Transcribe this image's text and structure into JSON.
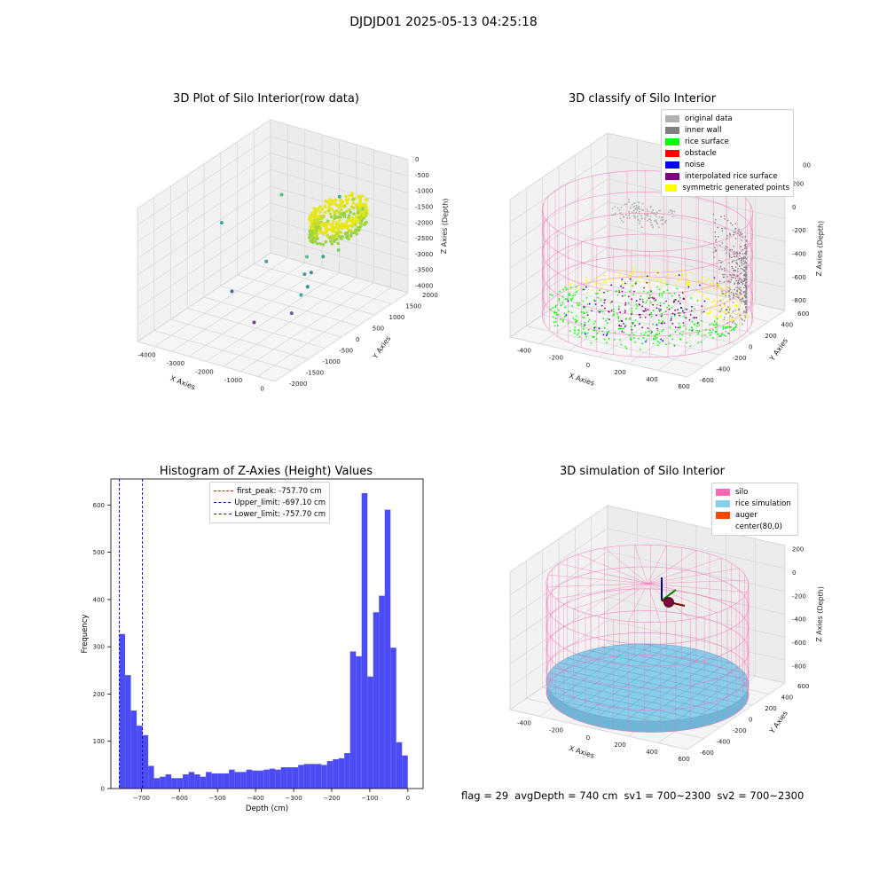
{
  "suptitle": "DJDJD01 2025-05-13 04:25:18",
  "footer": {
    "flag": "flag = 29",
    "avg_depth": "avgDepth = 740 cm",
    "sv1": "sv1 = 700~2300",
    "sv2": "sv2 = 700~2300"
  },
  "colors": {
    "pane": "#f2f2f2",
    "grid": "#d6d6d6",
    "hist": "#4c4cf5",
    "original": "#b0b0b0",
    "wall": "#808080",
    "rice": "#00ff00",
    "obstacle": "#ff0000",
    "noise": "#0000ff",
    "interp": "#800080",
    "sym": "#ffff00",
    "silo": "#ff69b4",
    "rice_sim": "#87ceeb",
    "auger": "#ff4500"
  },
  "chart_data": [
    {
      "type": "scatter",
      "title": "3D Plot of Silo Interior(row data)",
      "xlabel": "X Axies",
      "ylabel": "Y Axies",
      "zlabel": "Z Axies (Depth)",
      "x_ticks": [
        "-4000",
        "-3000",
        "-2000",
        "-1000",
        "0"
      ],
      "y_ticks": [
        "-2000",
        "-1500",
        "-1000",
        "-500",
        "0",
        "500",
        "1000",
        "1500",
        "2000"
      ],
      "z_ticks": [
        "0",
        "-500",
        "-1000",
        "-1500",
        "-2000",
        "-2500",
        "-3000",
        "-3500",
        "-4000"
      ]
    },
    {
      "type": "scatter",
      "title": "3D classify of Silo Interior",
      "xlabel": "X Axies",
      "ylabel": "Y Axies",
      "zlabel": "Z Axies (Depth)",
      "x_ticks": [
        "-400",
        "-200",
        "0",
        "200",
        "400",
        "600"
      ],
      "y_ticks": [
        "-600",
        "-400",
        "-200",
        "0",
        "200",
        "400",
        "600"
      ],
      "z_ticks": [
        "200",
        "0",
        "-200",
        "-400",
        "-600",
        "-800"
      ],
      "z_tick_clipped": "00",
      "legend": [
        {
          "label": "original data",
          "color": "#b0b0b0"
        },
        {
          "label": "inner wall",
          "color": "#808080"
        },
        {
          "label": "rice surface",
          "color": "#00ff00"
        },
        {
          "label": "obstacle",
          "color": "#ff0000"
        },
        {
          "label": "noise",
          "color": "#0000ff"
        },
        {
          "label": "interpolated rice surface",
          "color": "#800080"
        },
        {
          "label": "symmetric generated points",
          "color": "#ffff00"
        }
      ]
    },
    {
      "type": "bar",
      "title": "Histogram of Z-Axies (Height) Values",
      "xlabel": "Depth (cm)",
      "ylabel": "Frequency",
      "xlim": [
        -780,
        40
      ],
      "ylim": [
        0,
        655
      ],
      "x_ticks": [
        -700,
        -600,
        -500,
        -400,
        -300,
        -200,
        -100,
        0
      ],
      "y_ticks": [
        0,
        100,
        200,
        300,
        400,
        500,
        600
      ],
      "bin_start": -757.7,
      "bin_width": 15.15,
      "values": [
        327,
        240,
        165,
        133,
        113,
        48,
        22,
        25,
        30,
        22,
        22,
        30,
        35,
        30,
        25,
        35,
        32,
        32,
        32,
        40,
        35,
        35,
        40,
        38,
        38,
        40,
        42,
        40,
        45,
        45,
        45,
        50,
        52,
        52,
        52,
        50,
        58,
        62,
        64,
        75,
        290,
        280,
        625,
        237,
        373,
        408,
        590,
        298,
        98,
        70
      ],
      "vlines": [
        {
          "label": "first_peak: -757.70 cm",
          "x": -757.7,
          "color": "#ff0000"
        },
        {
          "label": "Upper_limit: -697.10 cm",
          "x": -697.1,
          "color": "#0000aa"
        },
        {
          "label": "Lower_limit: -757.70 cm",
          "x": -757.7,
          "color": "#0000ff"
        }
      ]
    },
    {
      "type": "scatter",
      "title": "3D simulation of Silo Interior",
      "xlabel": "X Axies",
      "ylabel": "Y Axies",
      "zlabel": "Z Axies (Depth)",
      "x_ticks": [
        "-400",
        "-200",
        "0",
        "200",
        "400",
        "600"
      ],
      "y_ticks": [
        "-600",
        "-400",
        "-200",
        "0",
        "200",
        "400",
        "600"
      ],
      "z_ticks": [
        "200",
        "0",
        "-200",
        "-400",
        "-600",
        "-800"
      ],
      "legend": [
        {
          "label": "silo",
          "color": "#ff69b4"
        },
        {
          "label": "rice simulation",
          "color": "#87ceeb"
        },
        {
          "label": "auger",
          "color": "#ff4500"
        },
        {
          "label": "center(80,0)",
          "color": ""
        }
      ]
    }
  ]
}
